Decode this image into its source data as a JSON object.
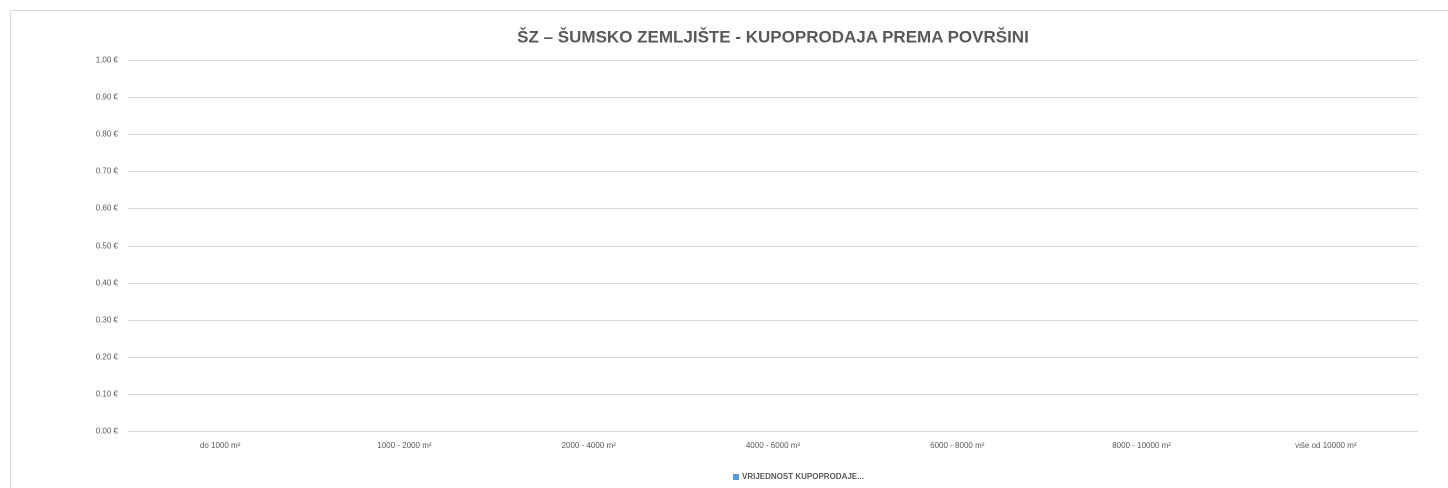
{
  "chart_data": {
    "type": "bar",
    "title": "ŠZ – ŠUMSKO ZEMLJIŠTE - KUPOPRODAJA PREMA POVRŠINI",
    "categories": [
      "do 1000 m²",
      "1000 - 2000 m²",
      "2000 - 4000 m²",
      "4000 - 6000 m²",
      "6000 - 8000 m²",
      "8000 - 10000 m²",
      "više od 10000 m²"
    ],
    "series": [
      {
        "name": "VRIJEDNOST KUPOPRODAJE...",
        "color": "#5b9bd5",
        "values": [
          0,
          0,
          0,
          0,
          0,
          0,
          0
        ]
      }
    ],
    "ylim": [
      0,
      1
    ],
    "yticks": [
      {
        "value": 0,
        "label": "0.00 €"
      },
      {
        "value": 0.1,
        "label": "0.10 €"
      },
      {
        "value": 0.2,
        "label": "0.20 €"
      },
      {
        "value": 0.3,
        "label": "0.30 €"
      },
      {
        "value": 0.4,
        "label": "0.40 €"
      },
      {
        "value": 0.5,
        "label": "0.50 €"
      },
      {
        "value": 0.6,
        "label": "0.60 €"
      },
      {
        "value": 0.7,
        "label": "0.70 €"
      },
      {
        "value": 0.8,
        "label": "0.80 €"
      },
      {
        "value": 0.9,
        "label": "0.90 €"
      },
      {
        "value": 1,
        "label": "1.00 €"
      }
    ],
    "grid": true,
    "legend": "bottom"
  }
}
